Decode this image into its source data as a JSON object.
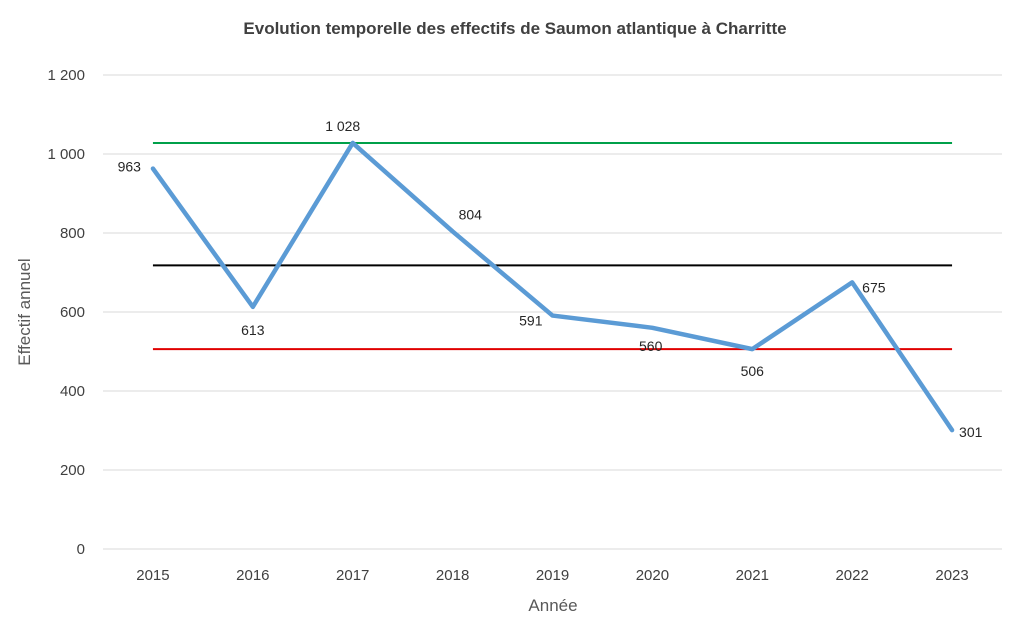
{
  "chart_data": {
    "type": "line",
    "title": "Evolution temporelle des effectifs de Saumon atlantique à Charritte",
    "xlabel": "Année",
    "ylabel": "Effectif annuel",
    "ylim": [
      0,
      1200
    ],
    "y_ticks": [
      0,
      200,
      400,
      600,
      800,
      1000,
      1200
    ],
    "y_tick_labels": [
      "0",
      "200",
      "400",
      "600",
      "800",
      "1 000",
      "1 200"
    ],
    "grid": true,
    "categories": [
      "2015",
      "2016",
      "2017",
      "2018",
      "2019",
      "2020",
      "2021",
      "2022",
      "2023"
    ],
    "series": [
      {
        "values": [
          963,
          613,
          1028,
          804,
          591,
          560,
          506,
          675,
          301
        ],
        "labels": [
          "963",
          "613",
          "1 028",
          "804",
          "591",
          "560",
          "506",
          "675",
          "301"
        ],
        "color": "#5b9bd5"
      }
    ],
    "reference_lines": [
      {
        "value": 1028,
        "color": "#00a04a"
      },
      {
        "value": 718,
        "color": "#000000"
      },
      {
        "value": 506,
        "color": "#e00000"
      }
    ]
  }
}
